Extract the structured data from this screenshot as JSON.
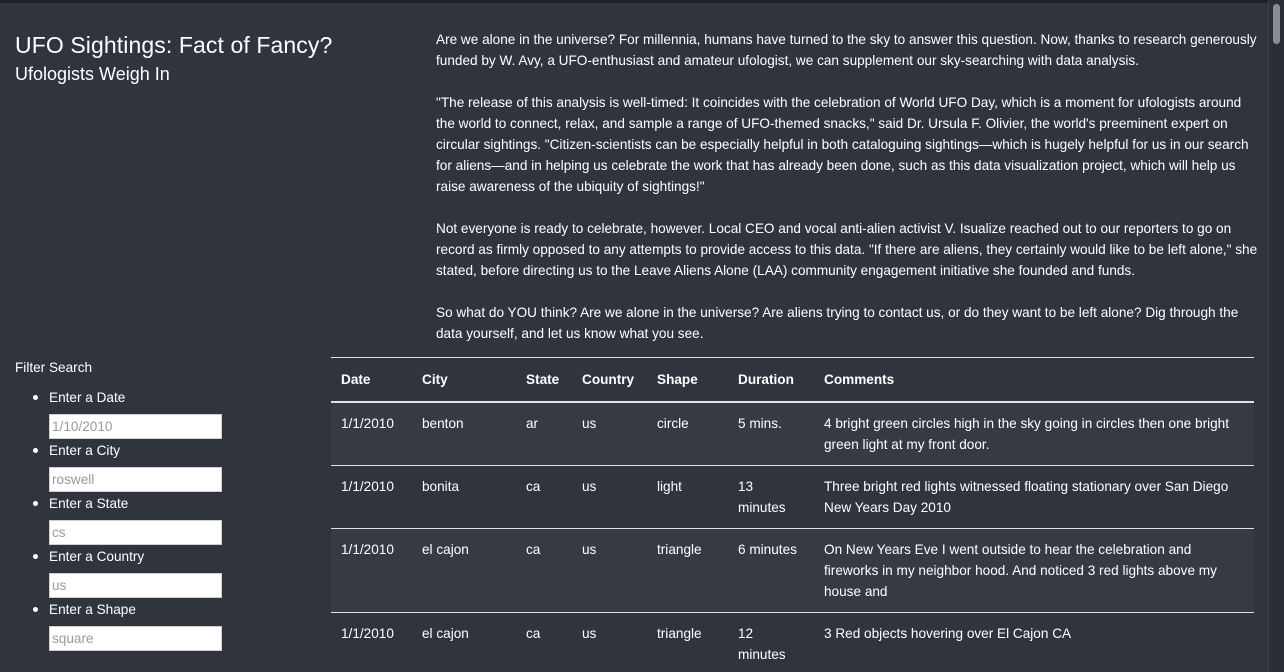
{
  "header": {
    "title": "UFO Sightings: Fact of Fancy?",
    "subtitle": "Ufologists Weigh In"
  },
  "article": {
    "paragraphs": [
      "Are we alone in the universe? For millennia, humans have turned to the sky to answer this question. Now, thanks to research generously funded by W. Avy, a UFO-enthusiast and amateur ufologist, we can supplement our sky-searching with data analysis.",
      "\"The release of this analysis is well-timed: It coincides with the celebration of World UFO Day, which is a moment for ufologists around the world to connect, relax, and sample a range of UFO-themed snacks,\" said Dr. Ursula F. Olivier, the world's preeminent expert on circular sightings. \"Citizen-scientists can be especially helpful in both cataloguing sightings—which is hugely helpful for us in our search for aliens—and in helping us celebrate the work that has already been done, such as this data visualization project, which will help us raise awareness of the ubiquity of sightings!\"",
      "Not everyone is ready to celebrate, however. Local CEO and vocal anti-alien activist V. Isualize reached out to our reporters to go on record as firmly opposed to any attempts to provide access to this data. \"If there are aliens, they certainly would like to be left alone,\" she stated, before directing us to the Leave Aliens Alone (LAA) community engagement initiative she founded and funds.",
      "So what do YOU think? Are we alone in the universe? Are aliens trying to contact us, or do they want to be left alone? Dig through the data yourself, and let us know what you see."
    ]
  },
  "filters": {
    "title": "Filter Search",
    "items": [
      {
        "label": "Enter a Date",
        "placeholder": "1/10/2010"
      },
      {
        "label": "Enter a City",
        "placeholder": "roswell"
      },
      {
        "label": "Enter a State",
        "placeholder": "cs"
      },
      {
        "label": "Enter a Country",
        "placeholder": "us"
      },
      {
        "label": "Enter a Shape",
        "placeholder": "square"
      }
    ]
  },
  "table": {
    "headers": [
      "Date",
      "City",
      "State",
      "Country",
      "Shape",
      "Duration",
      "Comments"
    ],
    "rows": [
      [
        "1/1/2010",
        "benton",
        "ar",
        "us",
        "circle",
        "5 mins.",
        "4 bright green circles high in the sky going in circles then one bright green light at my front door."
      ],
      [
        "1/1/2010",
        "bonita",
        "ca",
        "us",
        "light",
        "13 minutes",
        "Three bright red lights witnessed floating stationary over San Diego New Years Day 2010"
      ],
      [
        "1/1/2010",
        "el cajon",
        "ca",
        "us",
        "triangle",
        "6 minutes",
        "On New Years Eve I went outside to hear the celebration and fireworks in my neighbor hood. And noticed 3 red lights above my house and"
      ],
      [
        "1/1/2010",
        "el cajon",
        "ca",
        "us",
        "triangle",
        "12 minutes",
        "3 Red objects hovering over El Cajon CA"
      ]
    ]
  }
}
